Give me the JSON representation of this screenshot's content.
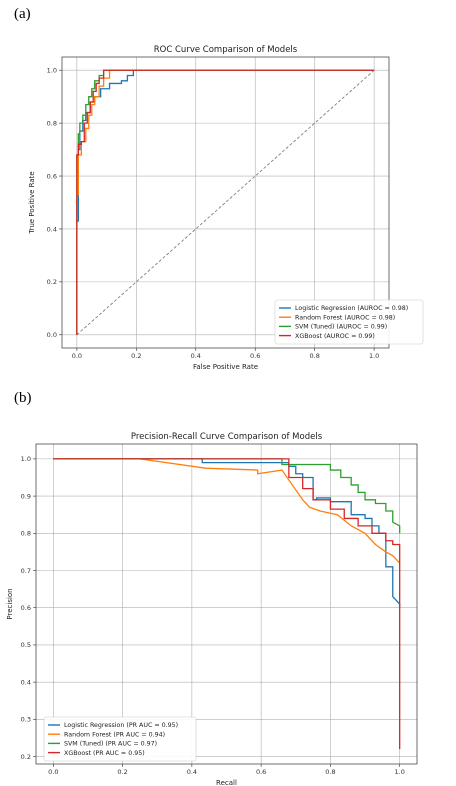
{
  "panels": {
    "a": "(a)",
    "b": "(b)"
  },
  "colors": {
    "logistic": "#1f77b4",
    "random_forest": "#ff7f0e",
    "svm": "#2ca02c",
    "xgboost": "#d62728",
    "diagonal": "#808080"
  },
  "chart_data": [
    {
      "type": "line",
      "title": "ROC Curve Comparison of Models",
      "xlabel": "False Positive Rate",
      "ylabel": "True Positive Rate",
      "xlim": [
        -0.05,
        1.05
      ],
      "ylim": [
        -0.05,
        1.05
      ],
      "xticks": [
        0.0,
        0.2,
        0.4,
        0.6,
        0.8,
        1.0
      ],
      "yticks": [
        0.0,
        0.2,
        0.4,
        0.6,
        0.8,
        1.0
      ],
      "tick_labels": [
        "0.0",
        "0.2",
        "0.4",
        "0.6",
        "0.8",
        "1.0"
      ],
      "grid": true,
      "legend_position": "lower-right",
      "reference_line": {
        "style": "dashed",
        "x": [
          0,
          1
        ],
        "y": [
          0,
          1
        ]
      },
      "series": [
        {
          "name": "Logistic Regression (AUROC = 0.98)",
          "color_key": "logistic",
          "x": [
            0,
            0,
            0.005,
            0.005,
            0.01,
            0.01,
            0.02,
            0.02,
            0.03,
            0.03,
            0.045,
            0.045,
            0.06,
            0.06,
            0.08,
            0.08,
            0.11,
            0.11,
            0.15,
            0.15,
            0.17,
            0.17,
            0.19,
            0.19,
            1.0
          ],
          "y": [
            0,
            0.43,
            0.43,
            0.7,
            0.7,
            0.77,
            0.77,
            0.81,
            0.81,
            0.84,
            0.84,
            0.88,
            0.88,
            0.9,
            0.9,
            0.93,
            0.93,
            0.95,
            0.95,
            0.96,
            0.96,
            0.98,
            0.98,
            1.0,
            1.0
          ]
        },
        {
          "name": "Random Forest (AUROC = 0.98)",
          "color_key": "random_forest",
          "x": [
            0,
            0,
            0.005,
            0.005,
            0.015,
            0.015,
            0.03,
            0.03,
            0.04,
            0.04,
            0.05,
            0.05,
            0.06,
            0.06,
            0.075,
            0.075,
            0.09,
            0.09,
            0.11,
            0.11,
            1.0
          ],
          "y": [
            0,
            0.53,
            0.53,
            0.68,
            0.68,
            0.73,
            0.73,
            0.78,
            0.78,
            0.83,
            0.83,
            0.87,
            0.87,
            0.9,
            0.9,
            0.94,
            0.94,
            0.97,
            0.97,
            1.0,
            1.0
          ]
        },
        {
          "name": "SVM (Tuned) (AUROC = 0.99)",
          "color_key": "svm",
          "x": [
            0,
            0,
            0.005,
            0.005,
            0.01,
            0.01,
            0.02,
            0.02,
            0.03,
            0.03,
            0.04,
            0.04,
            0.05,
            0.05,
            0.06,
            0.06,
            0.075,
            0.075,
            0.09,
            0.09,
            1.0
          ],
          "y": [
            0,
            0.68,
            0.68,
            0.76,
            0.76,
            0.8,
            0.8,
            0.83,
            0.83,
            0.87,
            0.87,
            0.9,
            0.9,
            0.93,
            0.93,
            0.96,
            0.96,
            0.98,
            0.98,
            1.0,
            1.0
          ]
        },
        {
          "name": "XGBoost (AUROC = 0.99)",
          "color_key": "xgboost",
          "x": [
            0,
            0,
            0.005,
            0.005,
            0.015,
            0.015,
            0.025,
            0.025,
            0.035,
            0.035,
            0.045,
            0.045,
            0.055,
            0.055,
            0.065,
            0.065,
            0.075,
            0.075,
            0.09,
            0.09,
            1.0
          ],
          "y": [
            0,
            0.68,
            0.68,
            0.72,
            0.72,
            0.73,
            0.73,
            0.8,
            0.8,
            0.84,
            0.84,
            0.88,
            0.88,
            0.92,
            0.92,
            0.95,
            0.95,
            0.97,
            0.97,
            1.0,
            1.0
          ]
        }
      ]
    },
    {
      "type": "line",
      "title": "Precision-Recall Curve Comparison of Models",
      "xlabel": "Recall",
      "ylabel": "Precision",
      "xlim": [
        -0.05,
        1.05
      ],
      "ylim": [
        0.18,
        1.04
      ],
      "xticks": [
        0.0,
        0.2,
        0.4,
        0.6,
        0.8,
        1.0
      ],
      "yticks": [
        0.2,
        0.3,
        0.4,
        0.5,
        0.6,
        0.7,
        0.8,
        0.9,
        1.0
      ],
      "xtick_labels": [
        "0.0",
        "0.2",
        "0.4",
        "0.6",
        "0.8",
        "1.0"
      ],
      "ytick_labels": [
        "0.2",
        "0.3",
        "0.4",
        "0.5",
        "0.6",
        "0.7",
        "0.8",
        "0.9",
        "1.0"
      ],
      "grid": true,
      "legend_position": "lower-left",
      "series": [
        {
          "name": "Logistic Regression (PR AUC = 0.95)",
          "color_key": "logistic",
          "x": [
            0,
            0.43,
            0.43,
            0.68,
            0.68,
            0.7,
            0.7,
            0.72,
            0.72,
            0.75,
            0.75,
            0.76,
            0.76,
            0.8,
            0.8,
            0.86,
            0.86,
            0.9,
            0.9,
            0.92,
            0.92,
            0.94,
            0.94,
            0.96,
            0.96,
            0.98,
            0.98,
            1.0,
            1.0
          ],
          "y": [
            1.0,
            1.0,
            0.99,
            0.99,
            0.98,
            0.98,
            0.96,
            0.96,
            0.95,
            0.95,
            0.89,
            0.89,
            0.895,
            0.895,
            0.885,
            0.885,
            0.85,
            0.85,
            0.84,
            0.84,
            0.82,
            0.82,
            0.8,
            0.8,
            0.71,
            0.71,
            0.63,
            0.61,
            0.6
          ]
        },
        {
          "name": "Random Forest (PR AUC = 0.94)",
          "color_key": "random_forest",
          "x": [
            0,
            0.25,
            0.44,
            0.44,
            0.59,
            0.59,
            0.66,
            0.66,
            0.72,
            0.72,
            0.74,
            0.74,
            0.77,
            0.77,
            0.82,
            0.82,
            0.86,
            0.86,
            0.9,
            0.9,
            0.93,
            0.93,
            0.96,
            0.96,
            0.98,
            0.98,
            1.0,
            1.0
          ],
          "y": [
            1.0,
            1.0,
            0.975,
            0.975,
            0.97,
            0.96,
            0.97,
            0.97,
            0.89,
            0.89,
            0.87,
            0.87,
            0.86,
            0.86,
            0.85,
            0.85,
            0.82,
            0.82,
            0.8,
            0.8,
            0.77,
            0.77,
            0.75,
            0.75,
            0.74,
            0.74,
            0.72,
            0.72
          ]
        },
        {
          "name": "SVM (Tuned) (PR AUC = 0.97)",
          "color_key": "svm",
          "x": [
            0,
            0.66,
            0.66,
            0.7,
            0.7,
            0.8,
            0.8,
            0.83,
            0.83,
            0.86,
            0.86,
            0.88,
            0.88,
            0.9,
            0.9,
            0.93,
            0.93,
            0.96,
            0.96,
            0.98,
            0.98,
            1.0,
            1.0
          ],
          "y": [
            1.0,
            1.0,
            0.985,
            0.985,
            0.985,
            0.985,
            0.97,
            0.97,
            0.95,
            0.95,
            0.93,
            0.93,
            0.91,
            0.91,
            0.89,
            0.89,
            0.88,
            0.88,
            0.86,
            0.86,
            0.83,
            0.82,
            0.8
          ]
        },
        {
          "name": "XGBoost (PR AUC = 0.95)",
          "color_key": "xgboost",
          "x": [
            0,
            0.68,
            0.68,
            0.72,
            0.72,
            0.75,
            0.75,
            0.8,
            0.8,
            0.84,
            0.84,
            0.88,
            0.88,
            0.92,
            0.92,
            0.96,
            0.96,
            0.98,
            0.98,
            1.0,
            1.0
          ],
          "y": [
            1.0,
            1.0,
            0.95,
            0.95,
            0.92,
            0.92,
            0.89,
            0.89,
            0.865,
            0.865,
            0.84,
            0.84,
            0.82,
            0.82,
            0.8,
            0.8,
            0.78,
            0.78,
            0.77,
            0.77,
            0.22
          ]
        }
      ]
    }
  ]
}
